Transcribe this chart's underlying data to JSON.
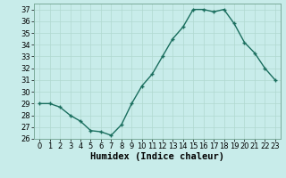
{
  "x": [
    0,
    1,
    2,
    3,
    4,
    5,
    6,
    7,
    8,
    9,
    10,
    11,
    12,
    13,
    14,
    15,
    16,
    17,
    18,
    19,
    20,
    21,
    22,
    23
  ],
  "y": [
    29,
    29,
    28.7,
    28,
    27.5,
    26.7,
    26.6,
    26.3,
    27.2,
    29,
    30.5,
    31.5,
    33,
    34.5,
    35.5,
    37,
    37,
    36.8,
    37,
    35.8,
    34.2,
    33.3,
    32,
    31
  ],
  "xlabel": "Humidex (Indice chaleur)",
  "ylim": [
    26,
    37.5
  ],
  "xlim": [
    -0.5,
    23.5
  ],
  "yticks": [
    26,
    27,
    28,
    29,
    30,
    31,
    32,
    33,
    34,
    35,
    36,
    37
  ],
  "xticks": [
    0,
    1,
    2,
    3,
    4,
    5,
    6,
    7,
    8,
    9,
    10,
    11,
    12,
    13,
    14,
    15,
    16,
    17,
    18,
    19,
    20,
    21,
    22,
    23
  ],
  "line_color": "#1a6e5e",
  "bg_color": "#c8ecea",
  "grid_color": "#b0d8d0",
  "xlabel_fontsize": 7.5,
  "tick_fontsize": 6,
  "marker_size": 3.5,
  "linewidth": 1.0
}
